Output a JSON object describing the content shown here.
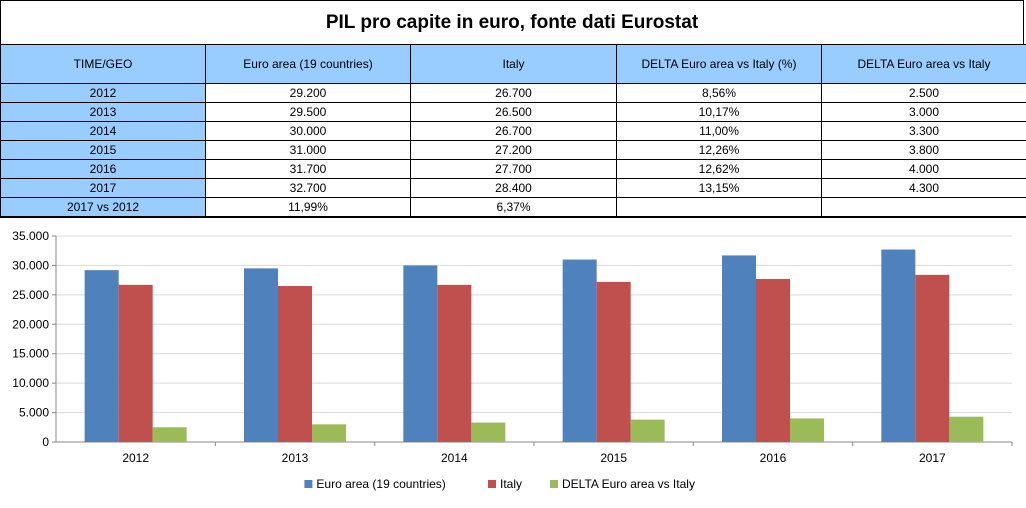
{
  "table": {
    "title": "PIL pro capite in euro, fonte dati Eurostat",
    "headers": [
      "TIME/GEO",
      "Euro area (19 countries)",
      "Italy",
      "DELTA Euro area vs Italy (%)",
      "DELTA Euro area vs Italy"
    ],
    "rows": [
      [
        "2012",
        "29.200",
        "26.700",
        "8,56%",
        "2.500"
      ],
      [
        "2013",
        "29.500",
        "26.500",
        "10,17%",
        "3.000"
      ],
      [
        "2014",
        "30.000",
        "26.700",
        "11,00%",
        "3.300"
      ],
      [
        "2015",
        "31.000",
        "27.200",
        "12,26%",
        "3.800"
      ],
      [
        "2016",
        "31.700",
        "27.700",
        "12,62%",
        "4.000"
      ],
      [
        "2017",
        "32.700",
        "28.400",
        "13,15%",
        "4.300"
      ],
      [
        "2017 vs 2012",
        "11,99%",
        "6,37%",
        "",
        ""
      ]
    ],
    "header_color": "#99ccff"
  },
  "chart_data": {
    "type": "bar",
    "categories": [
      "2012",
      "2013",
      "2014",
      "2015",
      "2016",
      "2017"
    ],
    "series": [
      {
        "name": "Euro area (19 countries)",
        "values": [
          29200,
          29500,
          30000,
          31000,
          31700,
          32700
        ],
        "color": "#4f81bd"
      },
      {
        "name": "Italy",
        "values": [
          26700,
          26500,
          26700,
          27200,
          27700,
          28400
        ],
        "color": "#c0504d"
      },
      {
        "name": "DELTA Euro area vs Italy",
        "values": [
          2500,
          3000,
          3300,
          3800,
          4000,
          4300
        ],
        "color": "#9bbb59"
      }
    ],
    "ylim": [
      0,
      35000
    ],
    "yticks": [
      "0",
      "5.000",
      "10.000",
      "15.000",
      "20.000",
      "25.000",
      "30.000",
      "35.000"
    ],
    "grid": true,
    "legend": "bottom-center"
  }
}
